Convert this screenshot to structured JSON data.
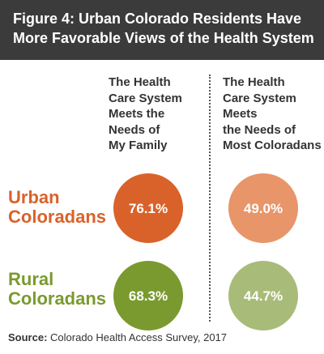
{
  "title": {
    "line1": "Figure 4: Urban Colorado Residents Have",
    "line2": "More Favorable Views of the Health System"
  },
  "columns": [
    {
      "lines": [
        "The Health",
        "Care System",
        "Meets the",
        "Needs of",
        "My Family"
      ]
    },
    {
      "lines": [
        "The Health",
        "Care System",
        "Meets",
        "the Needs of",
        "Most Coloradans"
      ]
    }
  ],
  "rows": [
    {
      "lines": [
        "Urban",
        "Coloradans"
      ],
      "color": "#d9622b"
    },
    {
      "lines": [
        "Rural",
        "Coloradans"
      ],
      "color": "#7a9a2f"
    }
  ],
  "chart_data": {
    "type": "table",
    "columns": [
      "The Health Care System Meets the Needs of My Family",
      "The Health Care System Meets the Needs of Most Coloradans"
    ],
    "rows": [
      "Urban Coloradans",
      "Rural Coloradans"
    ],
    "values": [
      [
        76.1,
        49.0
      ],
      [
        68.3,
        44.7
      ]
    ],
    "labels": [
      [
        "76.1%",
        "49.0%"
      ],
      [
        "68.3%",
        "44.7%"
      ]
    ],
    "colors": [
      [
        "#d9622b",
        "#e8956a"
      ],
      [
        "#7a9a2f",
        "#a9bb78"
      ]
    ]
  },
  "source": {
    "label": "Source:",
    "text": "Colorado Health Access Survey, 2017"
  }
}
